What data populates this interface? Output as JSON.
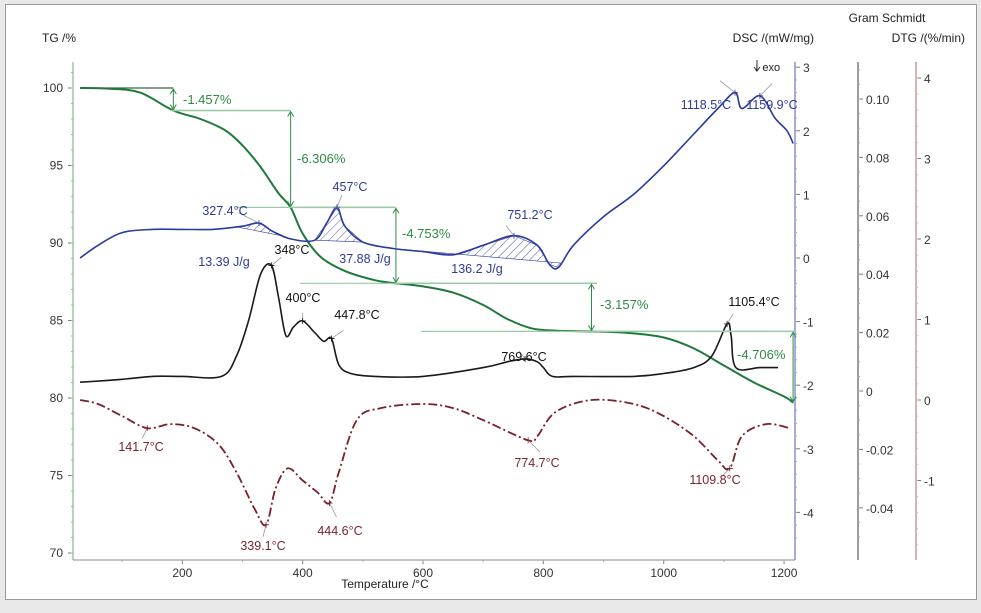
{
  "chart_data": {
    "type": "line",
    "title": "",
    "xlabel": "Temperature /°C",
    "xlim": [
      30,
      1220
    ],
    "x_ticks": [
      200,
      400,
      600,
      800,
      1000,
      1200
    ],
    "axes": {
      "tg": {
        "label": "TG /%",
        "ylim": [
          70,
          102
        ],
        "ticks": [
          100,
          95,
          90,
          85,
          80,
          75,
          70
        ],
        "color": "#1f7a3a"
      },
      "dsc": {
        "label": "DSC /(mW/mg)",
        "ylim": [
          -4.7,
          3.1
        ],
        "ticks": [
          3,
          2,
          1,
          0,
          -1,
          -2,
          -3,
          -4
        ],
        "color": "#2b3a9c",
        "note": "↓ exo"
      },
      "gram_schmidt": {
        "label": "Gram Schmidt",
        "ylim": [
          -0.055,
          0.115
        ],
        "ticks": [
          "0.10",
          "0.08",
          "0.06",
          "0.04",
          "0.02",
          "0",
          "-0.02",
          "-0.04"
        ],
        "color": "#555555"
      },
      "dtg": {
        "label": "DTG /(%/min)",
        "ylim": [
          -1.9,
          4.2
        ],
        "ticks": [
          4,
          3,
          2,
          1,
          0,
          -1
        ],
        "color": "#7a1f2b"
      }
    },
    "series": [
      {
        "name": "TG",
        "axis": "tg",
        "color": "#1f7a3a",
        "x": [
          30,
          80,
          130,
          185,
          230,
          270,
          300,
          330,
          360,
          380,
          400,
          430,
          470,
          520,
          555,
          600,
          650,
          700,
          740,
          780,
          820,
          880,
          940,
          1000,
          1050,
          1100,
          1150,
          1200,
          1215
        ],
        "y": [
          100,
          99.95,
          99.7,
          98.55,
          98.0,
          97.3,
          96.3,
          94.9,
          93.2,
          92.3,
          90.6,
          89.1,
          88.2,
          87.6,
          87.4,
          87.2,
          86.8,
          86.0,
          85.1,
          84.5,
          84.35,
          84.3,
          84.2,
          83.9,
          83.2,
          82.1,
          81.0,
          80.1,
          79.7
        ]
      },
      {
        "name": "DSC",
        "axis": "dsc",
        "color": "#2b3a9c",
        "x": [
          30,
          60,
          100,
          150,
          200,
          250,
          300,
          327.4,
          350,
          380,
          420,
          440,
          457,
          470,
          500,
          550,
          600,
          650,
          700,
          751.2,
          790,
          810,
          825,
          850,
          900,
          950,
          1000,
          1050,
          1090,
          1118.5,
          1130,
          1159.9,
          1185,
          1205,
          1215
        ],
        "y": [
          0,
          0.2,
          0.4,
          0.45,
          0.45,
          0.45,
          0.5,
          0.55,
          0.42,
          0.3,
          0.28,
          0.55,
          0.8,
          0.5,
          0.25,
          0.15,
          0.1,
          0.05,
          0.2,
          0.35,
          0.2,
          -0.1,
          -0.15,
          0.2,
          0.65,
          1.0,
          1.45,
          1.95,
          2.35,
          2.6,
          2.35,
          2.55,
          2.2,
          2.0,
          1.8
        ]
      },
      {
        "name": "Gram Schmidt",
        "axis": "gram_schmidt",
        "color": "#1a1a1a",
        "x": [
          30,
          100,
          150,
          200,
          265,
          290,
          310,
          330,
          348,
          360,
          372,
          385,
          400,
          420,
          435,
          447.8,
          460,
          480,
          520,
          600,
          700,
          740,
          769.6,
          790,
          800,
          815,
          850,
          950,
          1000,
          1050,
          1080,
          1105.4,
          1112,
          1120,
          1160,
          1190
        ],
        "y": [
          0.003,
          0.004,
          0.005,
          0.005,
          0.005,
          0.012,
          0.024,
          0.04,
          0.043,
          0.032,
          0.019,
          0.022,
          0.024,
          0.02,
          0.017,
          0.018,
          0.009,
          0.006,
          0.005,
          0.005,
          0.008,
          0.01,
          0.011,
          0.01,
          0.008,
          0.005,
          0.005,
          0.005,
          0.006,
          0.008,
          0.012,
          0.023,
          0.019,
          0.008,
          0.008,
          0.008
        ]
      },
      {
        "name": "DTG",
        "axis": "dtg",
        "color": "#7a1f2b",
        "x": [
          30,
          60,
          100,
          141.7,
          180,
          220,
          260,
          290,
          320,
          339.1,
          355,
          375,
          400,
          425,
          444.6,
          460,
          490,
          530,
          600,
          650,
          700,
          774.7,
          790,
          820,
          880,
          950,
          1000,
          1050,
          1090,
          1109.8,
          1130,
          1170,
          1210
        ],
        "y": [
          0,
          -0.05,
          -0.2,
          -0.35,
          -0.3,
          -0.35,
          -0.55,
          -0.9,
          -1.35,
          -1.55,
          -1.1,
          -0.85,
          -1.0,
          -1.15,
          -1.28,
          -0.9,
          -0.25,
          -0.1,
          -0.05,
          -0.1,
          -0.25,
          -0.5,
          -0.45,
          -0.15,
          0.0,
          -0.05,
          -0.2,
          -0.45,
          -0.75,
          -0.85,
          -0.45,
          -0.3,
          -0.35
        ]
      }
    ],
    "annotations": {
      "tg_steps": [
        {
          "label": "-1.457%",
          "from": 100.0,
          "to": 98.55,
          "at_T": 185
        },
        {
          "label": "-6.306%",
          "from": 98.55,
          "to": 92.3,
          "at_T": 380
        },
        {
          "label": "-4.753%",
          "from": 92.3,
          "to": 87.4,
          "at_T": 555
        },
        {
          "label": "-3.157%",
          "from": 87.4,
          "to": 84.3,
          "at_T": 880
        },
        {
          "label": "-4.706%",
          "from": 84.3,
          "to": 79.7,
          "at_T": 1215
        }
      ],
      "dsc_peaks": [
        {
          "label": "327.4°C",
          "T": 327.4
        },
        {
          "label": "457°C",
          "T": 457
        },
        {
          "label": "751.2°C",
          "T": 751.2
        },
        {
          "label": "1118.5°C",
          "T": 1118.5
        },
        {
          "label": "1159.9°C",
          "T": 1159.9
        }
      ],
      "dsc_areas": [
        {
          "label": "13.39 J/g",
          "range": [
            290,
            370
          ]
        },
        {
          "label": "37.88 J/g",
          "range": [
            420,
            500
          ]
        },
        {
          "label": "136.2 J/g",
          "range": [
            560,
            830
          ]
        }
      ],
      "gs_peaks": [
        {
          "label": "348°C",
          "T": 348
        },
        {
          "label": "400°C",
          "T": 400
        },
        {
          "label": "447.8°C",
          "T": 447.8
        },
        {
          "label": "769.6°C",
          "T": 769.6
        },
        {
          "label": "1105.4°C",
          "T": 1105.4
        }
      ],
      "dtg_peaks": [
        {
          "label": "141.7°C",
          "T": 141.7
        },
        {
          "label": "339.1°C",
          "T": 339.1
        },
        {
          "label": "444.6°C",
          "T": 444.6
        },
        {
          "label": "774.7°C",
          "T": 774.7
        },
        {
          "label": "1109.8°C",
          "T": 1109.8
        }
      ]
    },
    "grid": false,
    "legend": "none"
  }
}
